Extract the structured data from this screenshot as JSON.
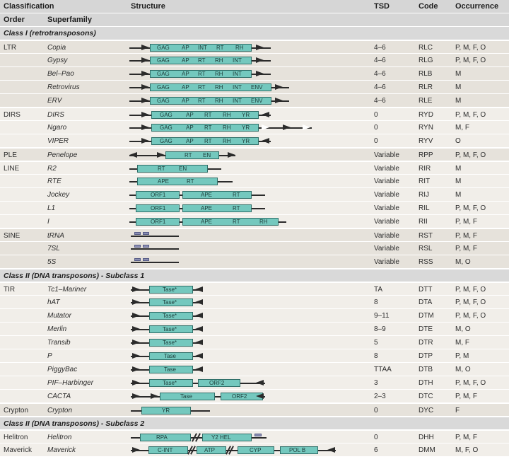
{
  "header": {
    "classification": "Classification",
    "structure": "Structure",
    "tsd": "TSD",
    "code": "Code",
    "occurrence": "Occurrence",
    "order": "Order",
    "superfamily": "Superfamily"
  },
  "sections": {
    "class1": "Class I (retrotransposons)",
    "class2sub1": "Class II (DNA transposons) - Subclass 1",
    "class2sub2": "Class II (DNA transposons) - Subclass 2"
  },
  "rows": [
    {
      "order": "LTR",
      "superfamily": "Copia",
      "tsd": "4–6",
      "code": "RLC",
      "occurrence": "P, M, F, O"
    },
    {
      "order": "",
      "superfamily": "Gypsy",
      "tsd": "4–6",
      "code": "RLG",
      "occurrence": "P, M, F, O"
    },
    {
      "order": "",
      "superfamily": "Bel–Pao",
      "tsd": "4–6",
      "code": "RLB",
      "occurrence": "M"
    },
    {
      "order": "",
      "superfamily": "Retrovirus",
      "tsd": "4–6",
      "code": "RLR",
      "occurrence": "M"
    },
    {
      "order": "",
      "superfamily": "ERV",
      "tsd": "4–6",
      "code": "RLE",
      "occurrence": "M"
    },
    {
      "order": "DIRS",
      "superfamily": "DIRS",
      "tsd": "0",
      "code": "RYD",
      "occurrence": "P, M, F, O"
    },
    {
      "order": "",
      "superfamily": "Ngaro",
      "tsd": "0",
      "code": "RYN",
      "occurrence": "M, F"
    },
    {
      "order": "",
      "superfamily": "VIPER",
      "tsd": "0",
      "code": "RYV",
      "occurrence": "O"
    },
    {
      "order": "PLE",
      "superfamily": "Penelope",
      "tsd": "Variable",
      "code": "RPP",
      "occurrence": "P, M, F, O"
    },
    {
      "order": "LINE",
      "superfamily": "R2",
      "tsd": "Variable",
      "code": "RIR",
      "occurrence": "M"
    },
    {
      "order": "",
      "superfamily": "RTE",
      "tsd": "Variable",
      "code": "RIT",
      "occurrence": "M"
    },
    {
      "order": "",
      "superfamily": "Jockey",
      "tsd": "Variable",
      "code": "RIJ",
      "occurrence": "M"
    },
    {
      "order": "",
      "superfamily": "L1",
      "tsd": "Variable",
      "code": "RIL",
      "occurrence": "P, M, F, O"
    },
    {
      "order": "",
      "superfamily": "I",
      "tsd": "Variable",
      "code": "RII",
      "occurrence": "P, M, F"
    },
    {
      "order": "SINE",
      "superfamily": "tRNA",
      "tsd": "Variable",
      "code": "RST",
      "occurrence": "P, M, F"
    },
    {
      "order": "",
      "superfamily": "7SL",
      "tsd": "Variable",
      "code": "RSL",
      "occurrence": "P, M, F"
    },
    {
      "order": "",
      "superfamily": "5S",
      "tsd": "Variable",
      "code": "RSS",
      "occurrence": "M, O"
    },
    {
      "order": "TIR",
      "superfamily": "Tc1–Mariner",
      "tsd": "TA",
      "code": "DTT",
      "occurrence": "P, M, F, O"
    },
    {
      "order": "",
      "superfamily": "hAT",
      "tsd": "8",
      "code": "DTA",
      "occurrence": "P, M, F, O"
    },
    {
      "order": "",
      "superfamily": "Mutator",
      "tsd": "9–11",
      "code": "DTM",
      "occurrence": "P, M, F, O"
    },
    {
      "order": "",
      "superfamily": "Merlin",
      "tsd": "8–9",
      "code": "DTE",
      "occurrence": "M, O"
    },
    {
      "order": "",
      "superfamily": "Transib",
      "tsd": "5",
      "code": "DTR",
      "occurrence": "M, F"
    },
    {
      "order": "",
      "superfamily": "P",
      "tsd": "8",
      "code": "DTP",
      "occurrence": "P, M"
    },
    {
      "order": "",
      "superfamily": "PiggyBac",
      "tsd": "TTAA",
      "code": "DTB",
      "occurrence": "M, O"
    },
    {
      "order": "",
      "superfamily": "PIF–Harbinger",
      "tsd": "3",
      "code": "DTH",
      "occurrence": "P, M, F, O"
    },
    {
      "order": "",
      "superfamily": "CACTA",
      "tsd": "2–3",
      "code": "DTC",
      "occurrence": "P, M, F"
    },
    {
      "order": "Crypton",
      "superfamily": "Crypton",
      "tsd": "0",
      "code": "DYC",
      "occurrence": "F"
    },
    {
      "order": "Helitron",
      "superfamily": "Helitron",
      "tsd": "0",
      "code": "DHH",
      "occurrence": "P, M, F"
    },
    {
      "order": "Maverick",
      "superfamily": "Maverick",
      "tsd": "6",
      "code": "DMM",
      "occurrence": "M, F, O"
    }
  ],
  "domains": {
    "gag": "GAG",
    "ap": "AP",
    "int": "INT",
    "rt": "RT",
    "rh": "RH",
    "env": "ENV",
    "yr": "YR",
    "en": "EN",
    "ape": "APE",
    "orf1": "ORF1",
    "orf2": "ORF2",
    "tase_star": "Tase*",
    "tase": "Tase",
    "rpa": "RPA",
    "y2hel": "Y2 HEL",
    "cint": "C-INT",
    "atp": "ATP",
    "cyp": "CYP",
    "polb": "POL B"
  },
  "colors": {
    "domain_fill": "#74c8be",
    "domain_border": "#2f6e68",
    "rna_box": "#8b8fb3",
    "header_bg": "#d6d6d6",
    "row_a": "#e6e2db",
    "row_b": "#f1eee9"
  }
}
